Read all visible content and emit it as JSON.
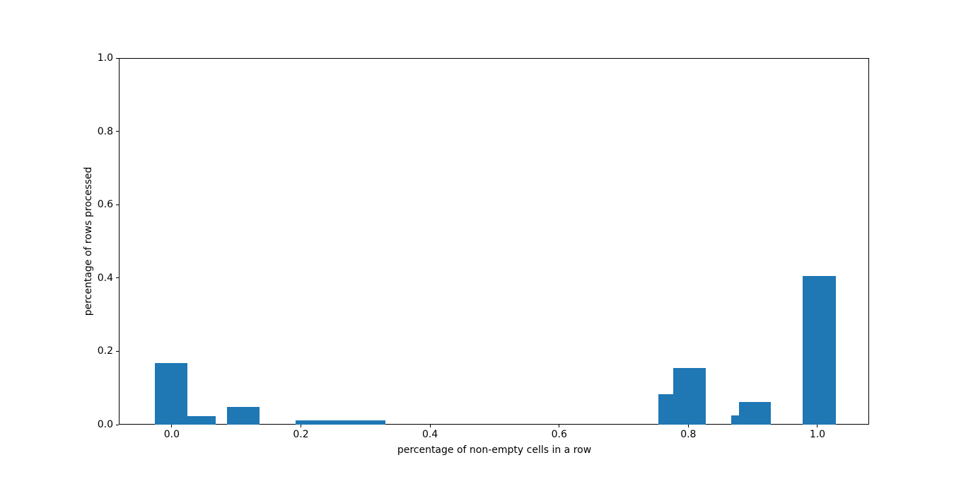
{
  "figure": {
    "background": "#ffffff",
    "text_color": "#000000"
  },
  "chart_data": {
    "type": "bar",
    "subtype": "histogram-silhouette",
    "title": "",
    "xlabel": "percentage of non-empty cells in a row",
    "ylabel": "percentage of rows processed",
    "xlim": [
      -0.082,
      1.08
    ],
    "ylim": [
      0.0,
      1.0
    ],
    "xtick_values": [
      0.0,
      0.2,
      0.4,
      0.6,
      0.8,
      1.0
    ],
    "xtick_labels": [
      "0.0",
      "0.2",
      "0.4",
      "0.6",
      "0.8",
      "1.0"
    ],
    "ytick_values": [
      0.0,
      0.2,
      0.4,
      0.6,
      0.8,
      1.0
    ],
    "ytick_labels": [
      "0.0",
      "0.2",
      "0.4",
      "0.6",
      "0.8",
      "1.0"
    ],
    "bar_color": "#1f77b4",
    "axis_color": "#000000",
    "grid": false,
    "legend": null,
    "bars": [
      {
        "x_left": -0.026,
        "x_right": 0.024,
        "height": 0.168
      },
      {
        "x_left": 0.024,
        "x_right": 0.068,
        "height": 0.023
      },
      {
        "x_left": 0.086,
        "x_right": 0.136,
        "height": 0.048
      },
      {
        "x_left": 0.192,
        "x_right": 0.331,
        "height": 0.012
      },
      {
        "x_left": 0.754,
        "x_right": 0.777,
        "height": 0.083
      },
      {
        "x_left": 0.777,
        "x_right": 0.827,
        "height": 0.155
      },
      {
        "x_left": 0.866,
        "x_right": 0.878,
        "height": 0.025
      },
      {
        "x_left": 0.878,
        "x_right": 0.928,
        "height": 0.061
      },
      {
        "x_left": 0.977,
        "x_right": 1.028,
        "height": 0.405
      }
    ]
  }
}
